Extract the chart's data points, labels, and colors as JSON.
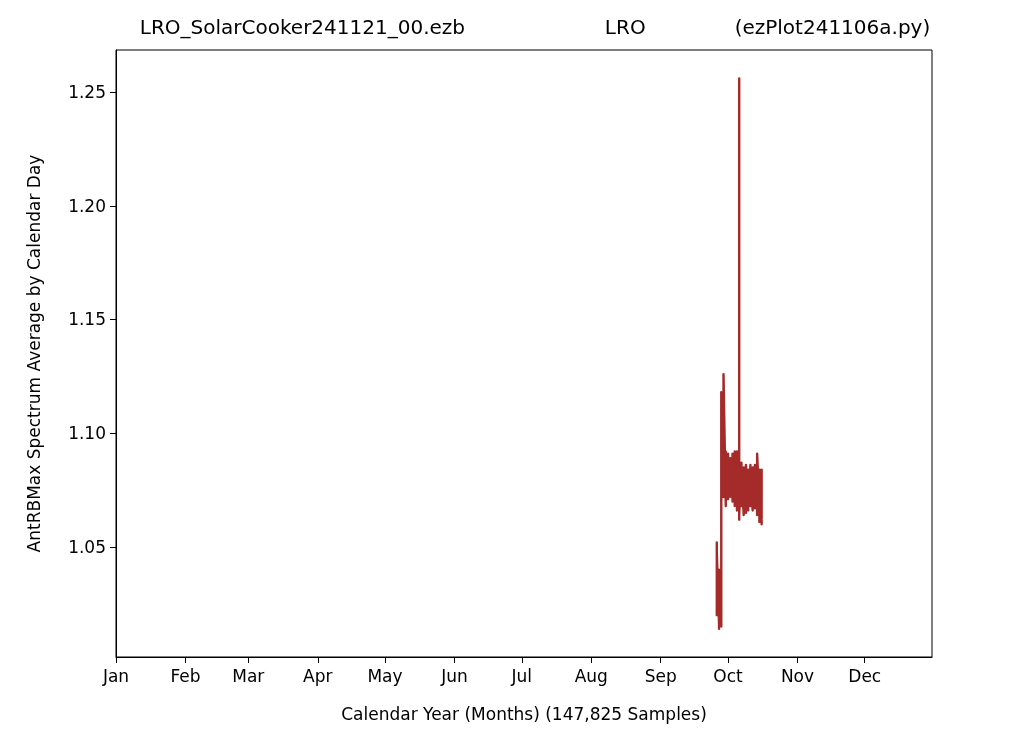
{
  "chart_data": {
    "type": "line",
    "title": "LRO_SolarCooker241121_00.ezb                      LRO              (ezPlot241106a.py)",
    "xlabel": "Calendar Year (Months) (147,825 Samples)",
    "ylabel": "AntRBMax Spectrum Average by Calendar Day",
    "xlim": [
      "--01-01",
      "--12-31"
    ],
    "ylim": [
      1.0016,
      1.2685
    ],
    "xticks": [
      {
        "value": "--01-01",
        "label": "Jan"
      },
      {
        "value": "--02-01",
        "label": "Feb"
      },
      {
        "value": "--03-01",
        "label": "Mar"
      },
      {
        "value": "--04-01",
        "label": "Apr"
      },
      {
        "value": "--05-01",
        "label": "May"
      },
      {
        "value": "--06-01",
        "label": "Jun"
      },
      {
        "value": "--07-01",
        "label": "Jul"
      },
      {
        "value": "--08-01",
        "label": "Aug"
      },
      {
        "value": "--09-01",
        "label": "Sep"
      },
      {
        "value": "--10-01",
        "label": "Oct"
      },
      {
        "value": "--11-01",
        "label": "Nov"
      },
      {
        "value": "--12-01",
        "label": "Dec"
      }
    ],
    "yticks": [
      {
        "value": 1.05,
        "label": "1.05"
      },
      {
        "value": 1.1,
        "label": "1.10"
      },
      {
        "value": 1.15,
        "label": "1.15"
      },
      {
        "value": 1.2,
        "label": "1.20"
      },
      {
        "value": 1.25,
        "label": "1.25"
      }
    ],
    "grid": false,
    "marker": "none",
    "line_style": "solid",
    "series": [
      {
        "color": "#a52a2a",
        "x": [
          "--09-26",
          "--09-26",
          "--09-26",
          "--09-26",
          "--09-27",
          "--09-27",
          "--09-27",
          "--09-27",
          "--09-28",
          "--09-28",
          "--09-28",
          "--09-28",
          "--09-28",
          "--09-29",
          "--09-29",
          "--09-29",
          "--09-29",
          "--09-29",
          "--09-30",
          "--09-30",
          "--09-30",
          "--10-01",
          "--10-01",
          "--10-01",
          "--10-02",
          "--10-02",
          "--10-02",
          "--10-03",
          "--10-03",
          "--10-03",
          "--10-04",
          "--10-04",
          "--10-04",
          "--10-05",
          "--10-05",
          "--10-05",
          "--10-05",
          "--10-06",
          "--10-06",
          "--10-06",
          "--10-06",
          "--10-07",
          "--10-07",
          "--10-07",
          "--10-08",
          "--10-08",
          "--10-08",
          "--10-09",
          "--10-09",
          "--10-09",
          "--10-10",
          "--10-10",
          "--10-10",
          "--10-11",
          "--10-11",
          "--10-11",
          "--10-12",
          "--10-12",
          "--10-12",
          "--10-13",
          "--10-13",
          "--10-13",
          "--10-14",
          "--10-14",
          "--10-14",
          "--10-14",
          "--10-15",
          "--10-15",
          "--10-15",
          "--10-15",
          "--10-16",
          "--10-16",
          "--10-16",
          "--10-16",
          "--10-16"
        ],
        "values": [
          1.026,
          1.052,
          1.02,
          1.048,
          1.016,
          1.04,
          1.014,
          1.03,
          1.015,
          1.022,
          1.016,
          1.118,
          1.07,
          1.11,
          1.072,
          1.09,
          1.075,
          1.126,
          1.068,
          1.092,
          1.07,
          1.088,
          1.071,
          1.091,
          1.072,
          1.089,
          1.073,
          1.09,
          1.07,
          1.091,
          1.069,
          1.092,
          1.068,
          1.09,
          1.07,
          1.092,
          1.066,
          1.088,
          1.062,
          1.256,
          1.064,
          1.087,
          1.068,
          1.084,
          1.064,
          1.085,
          1.067,
          1.083,
          1.065,
          1.086,
          1.066,
          1.084,
          1.067,
          1.086,
          1.068,
          1.083,
          1.066,
          1.085,
          1.069,
          1.086,
          1.067,
          1.084,
          1.066,
          1.085,
          1.064,
          1.091,
          1.068,
          1.084,
          1.061,
          1.083,
          1.062,
          1.084,
          1.06,
          1.083,
          1.062
        ]
      }
    ]
  }
}
